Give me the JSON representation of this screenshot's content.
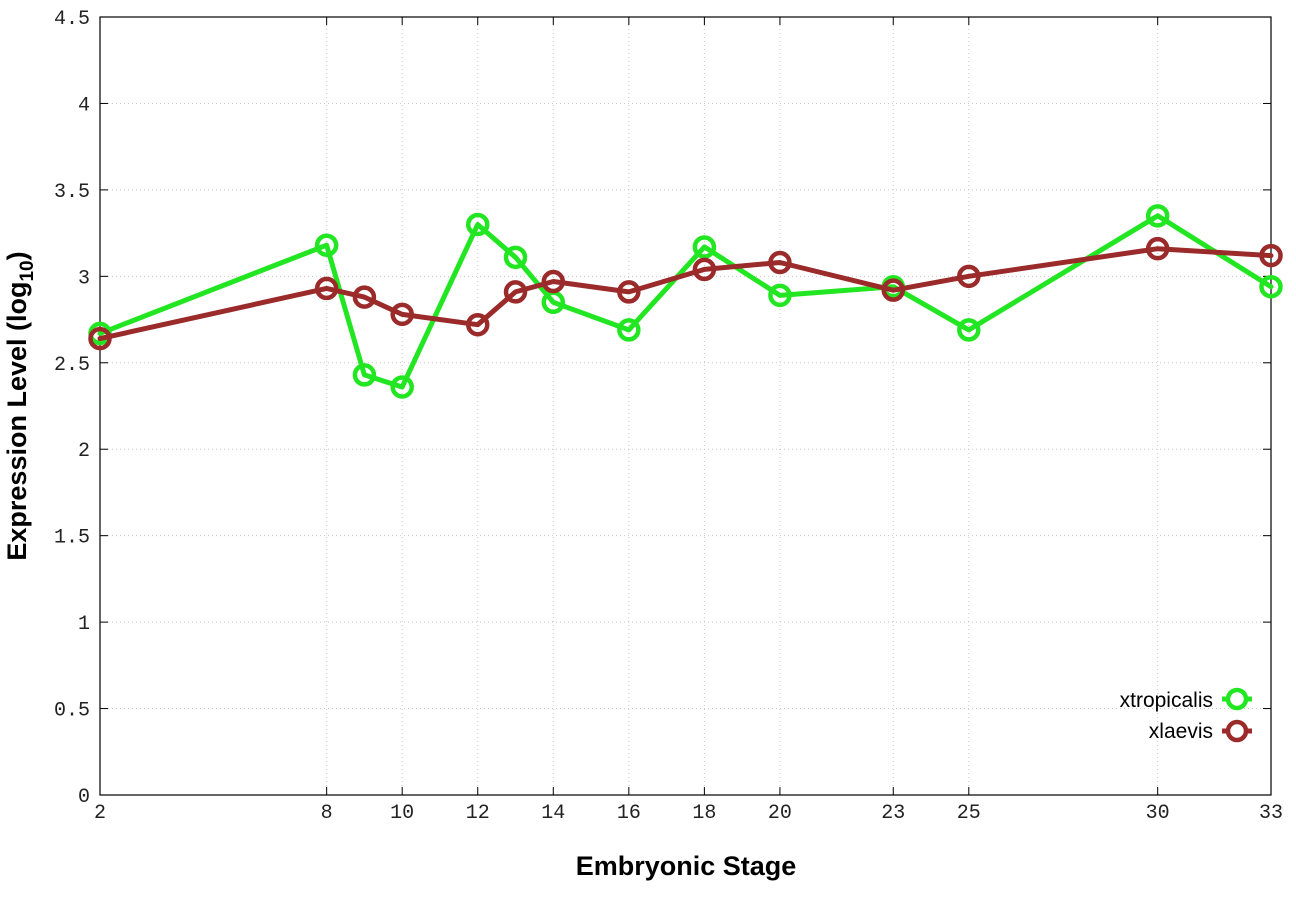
{
  "chart_data": {
    "type": "line",
    "xlabel": "Embryonic Stage",
    "ylabel_main": "Expression Level (log",
    "ylabel_sub": "10",
    "ylabel_close": ")",
    "x_ticks": [
      2,
      8,
      10,
      12,
      14,
      16,
      18,
      20,
      23,
      25,
      30,
      33
    ],
    "y_ticks": [
      "0",
      "0.5",
      "1",
      "1.5",
      "2",
      "2.5",
      "3",
      "3.5",
      "4",
      "4.5"
    ],
    "xlim": [
      2,
      33
    ],
    "ylim": [
      0,
      4.5
    ],
    "grid": true,
    "legend_position": "bottom-right",
    "series": [
      {
        "name": "xtropicalis",
        "color": "#22e622",
        "x": [
          2,
          8,
          9,
          10,
          12,
          13,
          14,
          16,
          18,
          20,
          23,
          25,
          30,
          33
        ],
        "values": [
          2.67,
          3.18,
          2.43,
          2.36,
          3.3,
          3.11,
          2.85,
          2.69,
          3.17,
          2.89,
          2.94,
          2.69,
          3.35,
          2.94
        ]
      },
      {
        "name": "xlaevis",
        "color": "#9b2a2a",
        "x": [
          2,
          8,
          9,
          10,
          12,
          13,
          14,
          16,
          18,
          20,
          23,
          25,
          30,
          33
        ],
        "values": [
          2.64,
          2.93,
          2.88,
          2.78,
          2.72,
          2.91,
          2.97,
          2.91,
          3.04,
          3.08,
          2.92,
          3.0,
          3.16,
          3.12
        ]
      }
    ]
  }
}
